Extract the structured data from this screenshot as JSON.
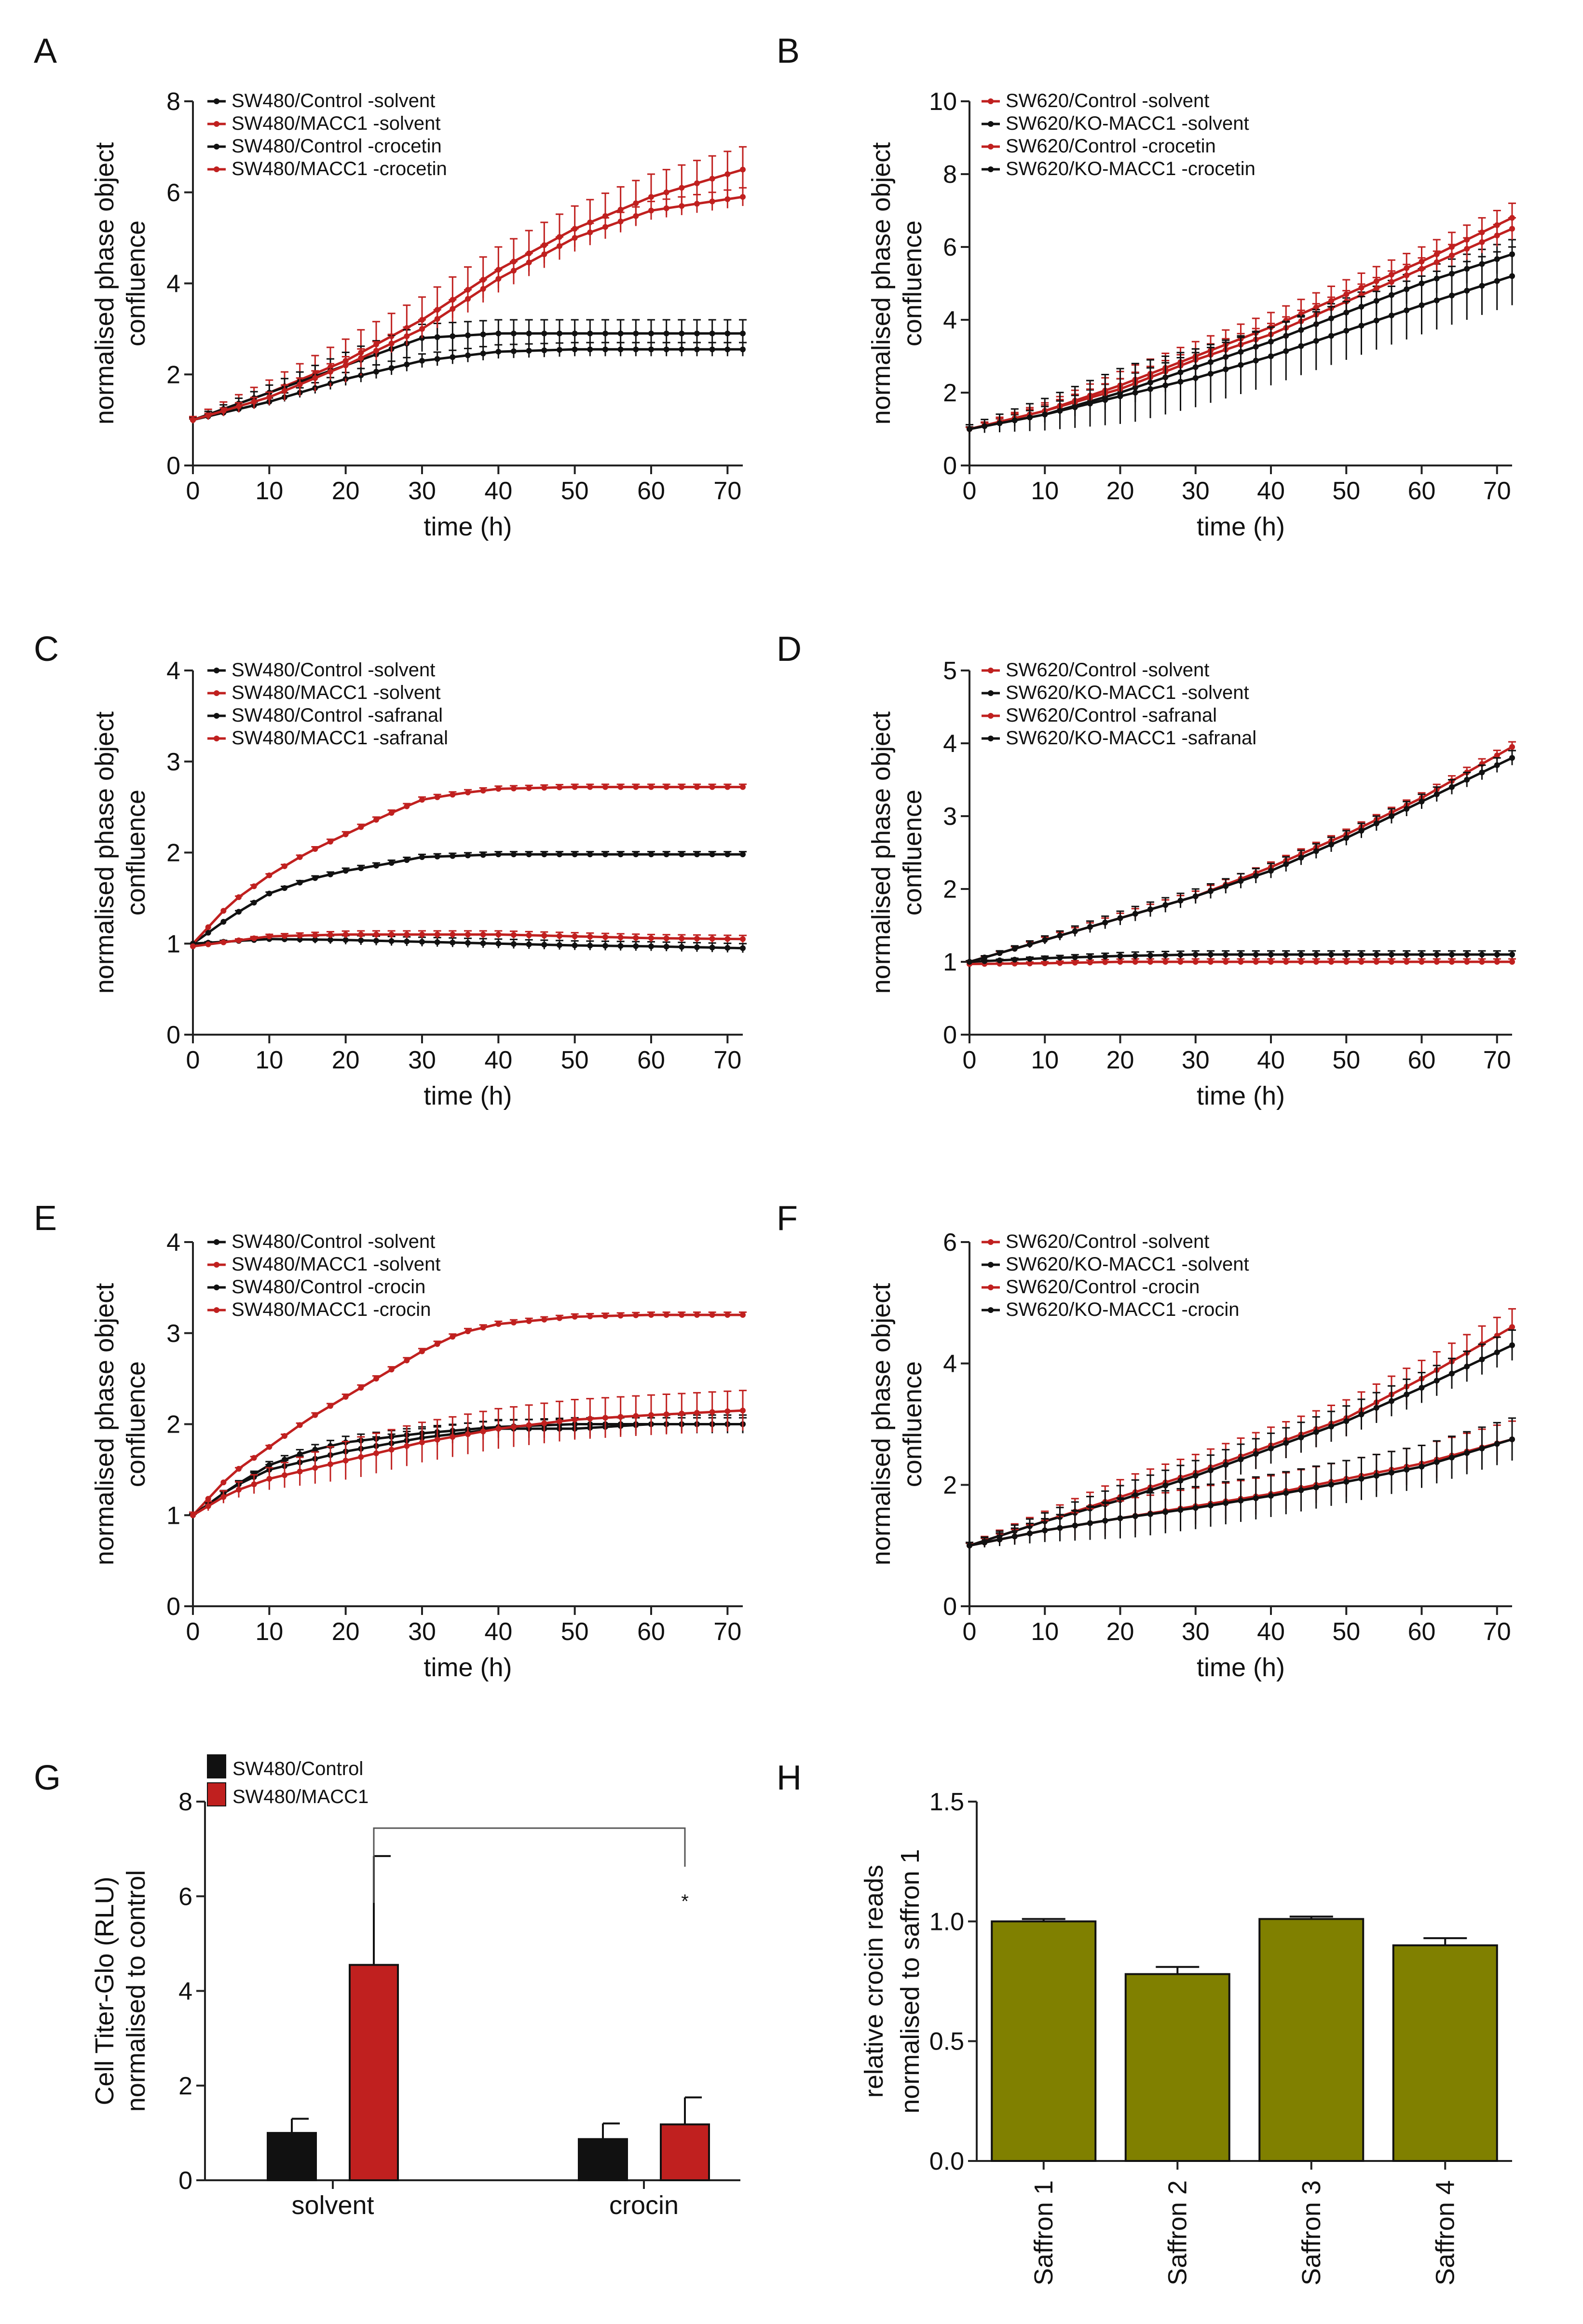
{
  "colors": {
    "black": "#111111",
    "red": "#c0201f",
    "olive": "#808000",
    "axis": "#222222"
  },
  "chart_data": [
    {
      "id": "A",
      "panel_label": "A",
      "type": "line",
      "xlabel": "time (h)",
      "ylabel": [
        "normalised phase object",
        "confluence"
      ],
      "xlim": [
        0,
        72
      ],
      "ylim": [
        0,
        8
      ],
      "xticks": [
        0,
        10,
        20,
        30,
        40,
        50,
        60,
        70
      ],
      "yticks": [
        0,
        2,
        4,
        6,
        8
      ],
      "legend_position": "top-left",
      "series": [
        {
          "name": "SW480/Control -solvent",
          "color": "black",
          "x": [
            0,
            10,
            20,
            30,
            40,
            50,
            60,
            72
          ],
          "y": [
            1,
            1.4,
            1.9,
            2.3,
            2.5,
            2.55,
            2.55,
            2.55
          ],
          "err": 0.15
        },
        {
          "name": "SW480/MACC1 -solvent",
          "color": "red",
          "x": [
            0,
            10,
            20,
            30,
            40,
            50,
            60,
            72
          ],
          "y": [
            1,
            1.6,
            2.3,
            3.2,
            4.3,
            5.2,
            5.9,
            6.5
          ],
          "err": 0.5
        },
        {
          "name": "SW480/Control -crocetin",
          "color": "black",
          "x": [
            0,
            10,
            20,
            30,
            40,
            50,
            60,
            72
          ],
          "y": [
            1,
            1.6,
            2.2,
            2.8,
            2.9,
            2.9,
            2.9,
            2.9
          ],
          "err": 0.3
        },
        {
          "name": "SW480/MACC1 -crocetin",
          "color": "red",
          "x": [
            0,
            10,
            20,
            30,
            40,
            50,
            60,
            72
          ],
          "y": [
            1,
            1.5,
            2.2,
            3.0,
            4.1,
            5.0,
            5.6,
            5.9
          ],
          "err": 0.2
        }
      ]
    },
    {
      "id": "B",
      "panel_label": "B",
      "type": "line",
      "xlabel": "time (h)",
      "ylabel": [
        "normalised phase object",
        "confluence"
      ],
      "xlim": [
        0,
        72
      ],
      "ylim": [
        0,
        10
      ],
      "xticks": [
        0,
        10,
        20,
        30,
        40,
        50,
        60,
        70
      ],
      "yticks": [
        0,
        2,
        4,
        6,
        8,
        10
      ],
      "legend_position": "top-left",
      "series": [
        {
          "name": "SW620/Control -solvent",
          "color": "red",
          "x": [
            0,
            10,
            20,
            30,
            40,
            50,
            60,
            72
          ],
          "y": [
            1,
            1.5,
            2.2,
            3.0,
            3.8,
            4.7,
            5.6,
            6.8
          ],
          "err": 0.4
        },
        {
          "name": "SW620/KO-MACC1 -solvent",
          "color": "black",
          "x": [
            0,
            10,
            20,
            30,
            40,
            50,
            60,
            72
          ],
          "y": [
            1,
            1.4,
            2.0,
            2.7,
            3.4,
            4.2,
            5.0,
            5.8
          ],
          "err": 0.4
        },
        {
          "name": "SW620/Control -crocetin",
          "color": "red",
          "x": [
            0,
            10,
            20,
            30,
            40,
            50,
            60,
            72
          ],
          "y": [
            1,
            1.5,
            2.1,
            2.9,
            3.6,
            4.5,
            5.4,
            6.5
          ],
          "err": 0.3
        },
        {
          "name": "SW620/KO-MACC1 -crocetin",
          "color": "black",
          "x": [
            0,
            10,
            20,
            30,
            40,
            50,
            60,
            72
          ],
          "y": [
            1,
            1.4,
            1.9,
            2.4,
            3.0,
            3.7,
            4.4,
            5.2
          ],
          "err": 0.8
        }
      ]
    },
    {
      "id": "C",
      "panel_label": "C",
      "type": "line",
      "xlabel": "time (h)",
      "ylabel": [
        "normalised phase object",
        "confluence"
      ],
      "xlim": [
        0,
        72
      ],
      "ylim": [
        0,
        4
      ],
      "xticks": [
        0,
        10,
        20,
        30,
        40,
        50,
        60,
        70
      ],
      "yticks": [
        0,
        1,
        2,
        3,
        4
      ],
      "legend_position": "top-left",
      "series": [
        {
          "name": "SW480/Control -solvent",
          "color": "black",
          "x": [
            0,
            5,
            10,
            15,
            20,
            25,
            30,
            40,
            50,
            60,
            72
          ],
          "y": [
            1,
            1.3,
            1.55,
            1.7,
            1.8,
            1.87,
            1.95,
            1.98,
            1.98,
            1.98,
            1.98
          ],
          "err": 0.03
        },
        {
          "name": "SW480/MACC1 -solvent",
          "color": "red",
          "x": [
            0,
            5,
            10,
            15,
            20,
            25,
            30,
            35,
            40,
            50,
            60,
            72
          ],
          "y": [
            1,
            1.45,
            1.75,
            2.0,
            2.2,
            2.4,
            2.58,
            2.65,
            2.7,
            2.72,
            2.72,
            2.72
          ],
          "err": 0.03
        },
        {
          "name": "SW480/Control -safranal",
          "color": "black",
          "x": [
            0,
            10,
            20,
            30,
            40,
            50,
            60,
            72
          ],
          "y": [
            1,
            1.05,
            1.04,
            1.02,
            1.0,
            0.98,
            0.97,
            0.95
          ],
          "err": 0.05
        },
        {
          "name": "SW480/MACC1 -safranal",
          "color": "red",
          "x": [
            0,
            10,
            20,
            30,
            40,
            50,
            60,
            72
          ],
          "y": [
            0.97,
            1.08,
            1.1,
            1.1,
            1.1,
            1.08,
            1.06,
            1.05
          ],
          "err": 0.04
        }
      ]
    },
    {
      "id": "D",
      "panel_label": "D",
      "type": "line",
      "xlabel": "time (h)",
      "ylabel": [
        "normalised phase object",
        "confluence"
      ],
      "xlim": [
        0,
        72
      ],
      "ylim": [
        0,
        5
      ],
      "xticks": [
        0,
        10,
        20,
        30,
        40,
        50,
        60,
        70
      ],
      "yticks": [
        0,
        1,
        2,
        3,
        4,
        5
      ],
      "legend_position": "top-left",
      "series": [
        {
          "name": "SW620/Control -solvent",
          "color": "red",
          "x": [
            0,
            10,
            20,
            30,
            40,
            50,
            60,
            72
          ],
          "y": [
            1,
            1.3,
            1.6,
            1.9,
            2.3,
            2.75,
            3.25,
            3.95
          ],
          "err": 0.07
        },
        {
          "name": "SW620/KO-MACC1 -solvent",
          "color": "black",
          "x": [
            0,
            10,
            20,
            30,
            40,
            50,
            60,
            72
          ],
          "y": [
            1,
            1.3,
            1.6,
            1.9,
            2.25,
            2.7,
            3.2,
            3.8
          ],
          "err": 0.1
        },
        {
          "name": "SW620/Control -safranal",
          "color": "red",
          "x": [
            0,
            10,
            20,
            30,
            40,
            50,
            60,
            72
          ],
          "y": [
            0.97,
            0.98,
            1.0,
            1.0,
            1.0,
            1.0,
            1.0,
            1.0
          ],
          "err": 0.04
        },
        {
          "name": "SW620/KO-MACC1 -safranal",
          "color": "black",
          "x": [
            0,
            10,
            20,
            30,
            40,
            50,
            60,
            72
          ],
          "y": [
            1,
            1.05,
            1.08,
            1.1,
            1.1,
            1.1,
            1.1,
            1.1
          ],
          "err": 0.05
        }
      ]
    },
    {
      "id": "E",
      "panel_label": "E",
      "type": "line",
      "xlabel": "time (h)",
      "ylabel": [
        "normalised phase object",
        "confluence"
      ],
      "xlim": [
        0,
        72
      ],
      "ylim": [
        0,
        4
      ],
      "xticks": [
        0,
        10,
        20,
        30,
        40,
        50,
        60,
        70
      ],
      "yticks": [
        0,
        1,
        2,
        3,
        4
      ],
      "legend_position": "top-left",
      "series": [
        {
          "name": "SW480/Control -solvent",
          "color": "black",
          "x": [
            0,
            5,
            10,
            15,
            20,
            30,
            40,
            50,
            60,
            72
          ],
          "y": [
            1,
            1.3,
            1.55,
            1.7,
            1.8,
            1.9,
            1.97,
            2.0,
            2.0,
            2.0
          ],
          "err": 0.07
        },
        {
          "name": "SW480/MACC1 -solvent",
          "color": "red",
          "x": [
            0,
            5,
            10,
            15,
            20,
            25,
            30,
            35,
            40,
            50,
            60,
            72
          ],
          "y": [
            1,
            1.45,
            1.75,
            2.05,
            2.3,
            2.55,
            2.8,
            3.0,
            3.1,
            3.18,
            3.2,
            3.2
          ],
          "err": 0.03
        },
        {
          "name": "SW480/Control -crocin",
          "color": "black",
          "x": [
            0,
            5,
            10,
            20,
            30,
            40,
            50,
            60,
            72
          ],
          "y": [
            1,
            1.3,
            1.5,
            1.7,
            1.85,
            1.95,
            1.95,
            2.0,
            2.0
          ],
          "err": 0.1
        },
        {
          "name": "SW480/MACC1 -crocin",
          "color": "red",
          "x": [
            0,
            5,
            10,
            20,
            30,
            40,
            50,
            60,
            72
          ],
          "y": [
            1,
            1.25,
            1.4,
            1.6,
            1.8,
            1.95,
            2.05,
            2.1,
            2.15
          ],
          "err": 0.22
        }
      ]
    },
    {
      "id": "F",
      "panel_label": "F",
      "type": "line",
      "xlabel": "time (h)",
      "ylabel": [
        "normalised phase object",
        "confluence"
      ],
      "xlim": [
        0,
        72
      ],
      "ylim": [
        0,
        6
      ],
      "xticks": [
        0,
        10,
        20,
        30,
        40,
        50,
        60,
        70
      ],
      "yticks": [
        0,
        2,
        4,
        6
      ],
      "legend_position": "top-left",
      "series": [
        {
          "name": "SW620/Control -solvent",
          "color": "red",
          "x": [
            0,
            10,
            20,
            30,
            40,
            50,
            60,
            72
          ],
          "y": [
            1,
            1.4,
            1.8,
            2.2,
            2.65,
            3.1,
            3.75,
            4.6
          ],
          "err": 0.3
        },
        {
          "name": "SW620/KO-MACC1 -solvent",
          "color": "black",
          "x": [
            0,
            10,
            20,
            30,
            40,
            50,
            60,
            72
          ],
          "y": [
            1,
            1.4,
            1.75,
            2.15,
            2.6,
            3.05,
            3.6,
            4.3
          ],
          "err": 0.25
        },
        {
          "name": "SW620/Control -crocin",
          "color": "red",
          "x": [
            0,
            10,
            20,
            30,
            40,
            50,
            60,
            72
          ],
          "y": [
            1,
            1.25,
            1.45,
            1.65,
            1.85,
            2.1,
            2.35,
            2.75
          ],
          "err": 0.3
        },
        {
          "name": "SW620/KO-MACC1 -crocin",
          "color": "black",
          "x": [
            0,
            10,
            20,
            30,
            40,
            50,
            60,
            72
          ],
          "y": [
            1,
            1.25,
            1.45,
            1.62,
            1.82,
            2.05,
            2.3,
            2.75
          ],
          "err": 0.35
        }
      ]
    },
    {
      "id": "G",
      "panel_label": "G",
      "type": "bar",
      "ylabel": [
        "Cell Titer-Glo (RLU)",
        "normalised to control"
      ],
      "ylim": [
        0,
        8
      ],
      "yticks": [
        0,
        2,
        4,
        6,
        8
      ],
      "categories": [
        "solvent",
        "crocin"
      ],
      "legend_position": "top-left",
      "series": [
        {
          "name": "SW480/Control",
          "color": "black",
          "values": [
            1.0,
            0.87
          ],
          "err": [
            0.3,
            0.33
          ]
        },
        {
          "name": "SW480/MACC1",
          "color": "red",
          "values": [
            4.55,
            1.18
          ],
          "err": [
            2.3,
            0.57
          ]
        }
      ],
      "significance": {
        "label": "*",
        "from": "solvent / SW480/MACC1",
        "to": "crocin / SW480/MACC1"
      }
    },
    {
      "id": "H",
      "panel_label": "H",
      "type": "bar",
      "ylabel": [
        "relative crocin reads",
        "normalised to saffron 1"
      ],
      "ylim": [
        0,
        1.5
      ],
      "yticks": [
        "0.0",
        "0.5",
        "1.0",
        "1.5"
      ],
      "categories": [
        "Saffron 1",
        "Saffron 2",
        "Saffron 3",
        "Saffron 4"
      ],
      "series": [
        {
          "name": "crocin reads",
          "color": "olive",
          "values": [
            1.0,
            0.78,
            1.01,
            0.9
          ],
          "err": [
            0.01,
            0.03,
            0.01,
            0.03
          ]
        }
      ]
    }
  ]
}
